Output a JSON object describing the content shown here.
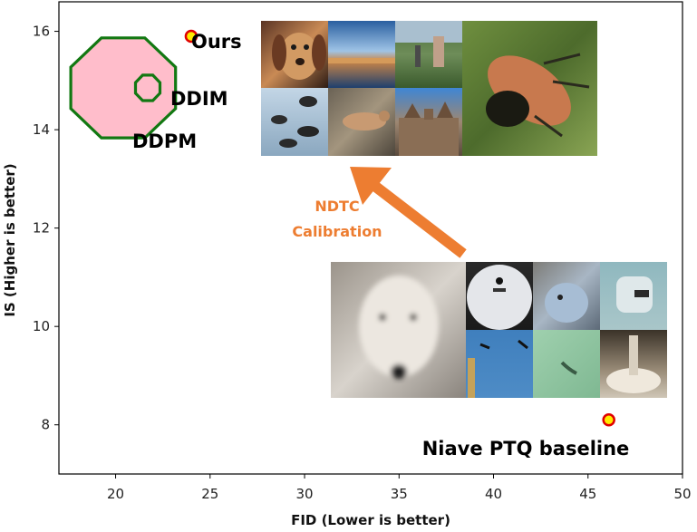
{
  "chart_data": {
    "type": "scatter",
    "xlabel": "FID (Lower is better)",
    "ylabel": "IS (Higher is better)",
    "xlim": [
      17,
      50
    ],
    "ylim": [
      7,
      16.6
    ],
    "xticks": [
      20,
      25,
      30,
      35,
      40,
      45,
      50
    ],
    "yticks": [
      8,
      10,
      12,
      14,
      16
    ],
    "points": [
      {
        "label": "Ours",
        "x": 24.0,
        "y": 15.9
      },
      {
        "label": "Niave PTQ baseline",
        "x": 46.1,
        "y": 8.1
      }
    ],
    "regions": [
      {
        "label": "DDPM",
        "cx": 20.4,
        "cy": 14.85,
        "rx": 3.0,
        "ry": 1.1
      },
      {
        "label": "DDIM",
        "cx": 21.7,
        "cy": 14.85,
        "rx": 0.7,
        "ry": 0.28
      }
    ],
    "annotation": {
      "text_line1": "NDTC",
      "text_line2": "Calibration"
    },
    "colors": {
      "point_fill": "#ffeb00",
      "point_edge": "#e00000",
      "region_edge": "#127812",
      "region_fill": "#ffbdcb",
      "arrow": "#ed7d31"
    },
    "image_grids": [
      {
        "name": "calibrated-samples",
        "thumbnails": [
          "dog",
          "sunset-sea",
          "people-outdoor",
          "birds",
          "bird-on-rock",
          "palace"
        ],
        "large": "beetle"
      },
      {
        "name": "ptq-samples",
        "large": "white-dog",
        "thumbnails": [
          "ball",
          "plush-toy",
          "device",
          "birds-sky",
          "green-blur",
          "lamp"
        ]
      }
    ]
  }
}
